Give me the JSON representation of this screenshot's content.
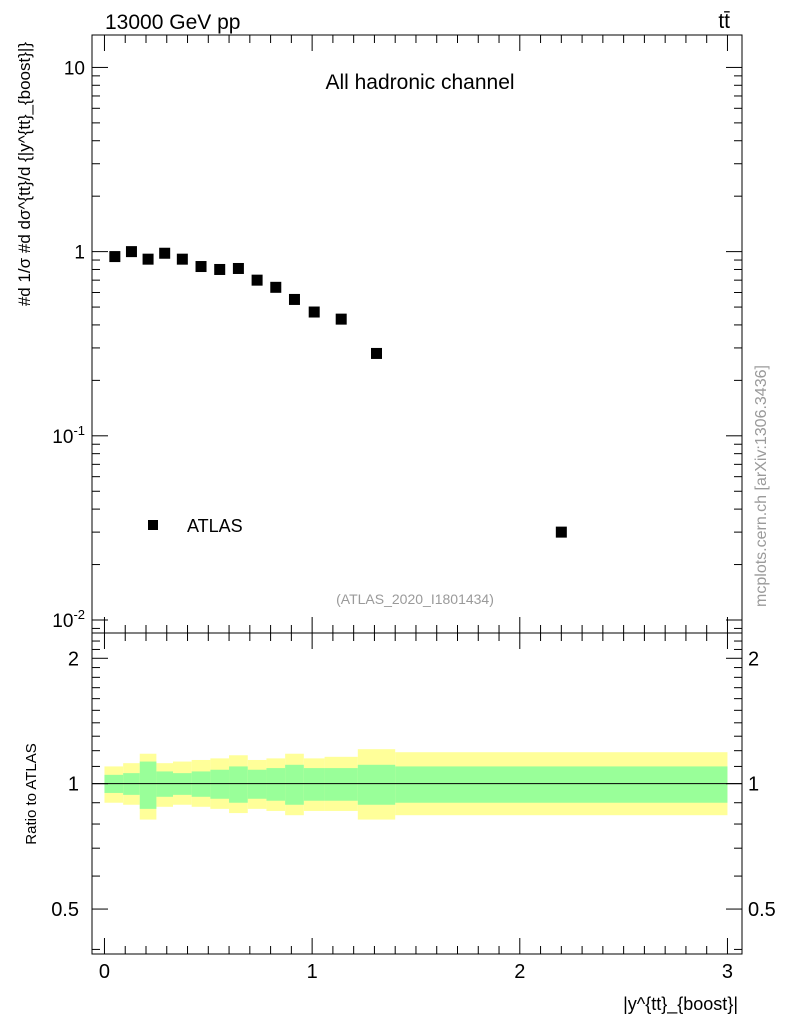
{
  "header": {
    "energy_label": "13000 GeV pp",
    "process_label": "tt̄"
  },
  "watermark": "mcplots.cern.ch [arXiv:1306.3436]",
  "analysis_id": "(ATLAS_2020_I1801434)",
  "chart_data": [
    {
      "type": "scatter",
      "title": "All hadronic channel",
      "ylabel": "#d 1/σ #d dσ^{tt}/d {|y^{tt}_{boost}|}",
      "y_scale": "log",
      "xlim": [
        -0.06,
        3.07
      ],
      "ylim": [
        0.0085,
        15
      ],
      "y_tick_labels": [
        "10^-2",
        "10^-1",
        "1",
        "10"
      ],
      "legend": {
        "position": "bottom-left",
        "entries": [
          "ATLAS"
        ]
      },
      "series": [
        {
          "name": "ATLAS",
          "marker": "square",
          "color": "#000000",
          "x": [
            0.05,
            0.13,
            0.21,
            0.29,
            0.375,
            0.465,
            0.555,
            0.645,
            0.735,
            0.825,
            0.915,
            1.01,
            1.14,
            1.31,
            2.2
          ],
          "y": [
            0.94,
            1.0,
            0.91,
            0.98,
            0.91,
            0.83,
            0.8,
            0.81,
            0.7,
            0.64,
            0.55,
            0.47,
            0.43,
            0.28,
            0.03
          ]
        }
      ]
    },
    {
      "type": "area",
      "ylabel": "Ratio to ATLAS",
      "xlabel": "|y^{tt}_{boost}|",
      "xlim": [
        -0.06,
        3.07
      ],
      "ylim": [
        0.39,
        2.3
      ],
      "x_ticks": [
        0,
        1,
        2,
        3
      ],
      "y_tick_labels": [
        "0.5",
        "1",
        "2"
      ],
      "reference_line": 1,
      "bands": {
        "bin_edges": [
          0,
          0.09,
          0.17,
          0.25,
          0.33,
          0.42,
          0.51,
          0.6,
          0.69,
          0.78,
          0.87,
          0.96,
          1.06,
          1.22,
          1.4,
          3.0
        ],
        "stat_low": [
          0.95,
          0.94,
          0.87,
          0.93,
          0.94,
          0.93,
          0.92,
          0.9,
          0.92,
          0.91,
          0.89,
          0.91,
          0.91,
          0.89,
          0.9
        ],
        "stat_high": [
          1.05,
          1.06,
          1.13,
          1.07,
          1.06,
          1.07,
          1.08,
          1.1,
          1.08,
          1.09,
          1.11,
          1.09,
          1.09,
          1.11,
          1.1
        ],
        "total_low": [
          0.9,
          0.89,
          0.82,
          0.88,
          0.89,
          0.88,
          0.87,
          0.85,
          0.87,
          0.86,
          0.84,
          0.86,
          0.86,
          0.82,
          0.84
        ],
        "total_high": [
          1.1,
          1.12,
          1.18,
          1.12,
          1.13,
          1.14,
          1.15,
          1.17,
          1.14,
          1.15,
          1.18,
          1.15,
          1.16,
          1.21,
          1.19
        ],
        "stat_color": "#99ff99",
        "total_color": "#ffff99"
      }
    }
  ]
}
